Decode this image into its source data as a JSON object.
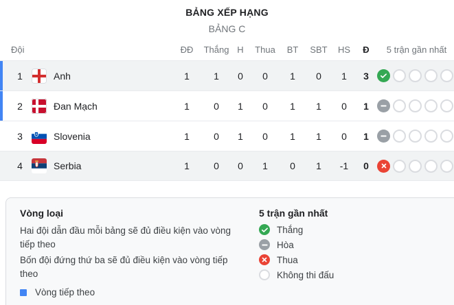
{
  "header": {
    "title": "BẢNG XẾP HẠNG",
    "subtitle": "BẢNG C"
  },
  "table": {
    "columns": {
      "team": "Đội",
      "played": "ĐĐ",
      "wins": "Thắng",
      "draws": "H",
      "losses": "Thua",
      "goals_for": "BT",
      "goals_against": "SBT",
      "goal_diff": "HS",
      "points": "Đ",
      "form": "5 trận gần nhất"
    },
    "rows": [
      {
        "pos": "1",
        "team": "Anh",
        "flag": "england",
        "played": "1",
        "wins": "1",
        "draws": "0",
        "losses": "0",
        "goals_for": "1",
        "goals_against": "0",
        "goal_diff": "1",
        "points": "3",
        "form": [
          "win",
          "none",
          "none",
          "none",
          "none"
        ],
        "qualified": true,
        "highlight": true
      },
      {
        "pos": "2",
        "team": "Đan Mạch",
        "flag": "denmark",
        "played": "1",
        "wins": "0",
        "draws": "1",
        "losses": "0",
        "goals_for": "1",
        "goals_against": "1",
        "goal_diff": "0",
        "points": "1",
        "form": [
          "draw",
          "none",
          "none",
          "none",
          "none"
        ],
        "qualified": true,
        "highlight": false
      },
      {
        "pos": "3",
        "team": "Slovenia",
        "flag": "slovenia",
        "played": "1",
        "wins": "0",
        "draws": "1",
        "losses": "0",
        "goals_for": "1",
        "goals_against": "1",
        "goal_diff": "0",
        "points": "1",
        "form": [
          "draw",
          "none",
          "none",
          "none",
          "none"
        ],
        "qualified": false,
        "highlight": false
      },
      {
        "pos": "4",
        "team": "Serbia",
        "flag": "serbia",
        "played": "1",
        "wins": "0",
        "draws": "0",
        "losses": "1",
        "goals_for": "0",
        "goals_against": "1",
        "goal_diff": "-1",
        "points": "0",
        "form": [
          "loss",
          "none",
          "none",
          "none",
          "none"
        ],
        "qualified": false,
        "highlight": true
      }
    ]
  },
  "legend": {
    "qualification": {
      "title": "Vòng loại",
      "rules": [
        "Hai đội dẫn đầu mỗi bảng sẽ đủ điều kiện vào vòng tiếp theo",
        "Bốn đội đứng thứ ba sẽ đủ điều kiện vào vòng tiếp theo"
      ],
      "next_round_label": "Vòng tiếp theo"
    },
    "form": {
      "title": "5 trận gần nhất",
      "items": [
        {
          "type": "win",
          "label": "Thắng"
        },
        {
          "type": "draw",
          "label": "Hòa"
        },
        {
          "type": "loss",
          "label": "Thua"
        },
        {
          "type": "none",
          "label": "Không thi đấu"
        }
      ]
    }
  },
  "colors": {
    "accent_blue": "#4285f4",
    "win_green": "#34a853",
    "draw_gray": "#9aa0a6",
    "loss_red": "#ea4335",
    "highlight_row": "#f1f3f4",
    "panel_bg": "#f8f9fa"
  }
}
